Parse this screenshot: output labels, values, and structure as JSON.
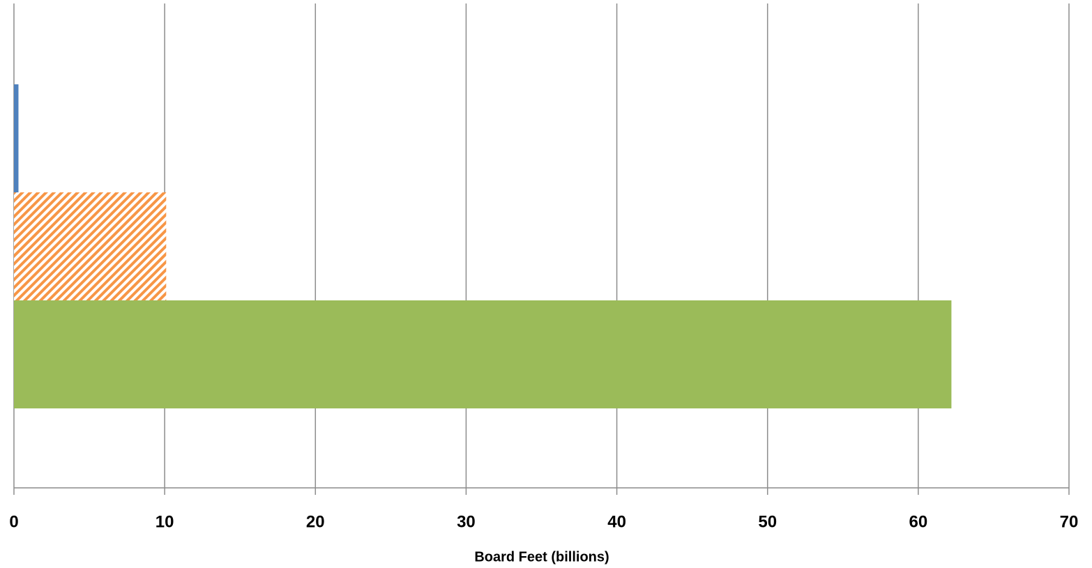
{
  "chart_data": {
    "type": "bar",
    "orientation": "horizontal",
    "categories": [
      null,
      null,
      null
    ],
    "values": [
      0.3,
      10.1,
      62.2
    ],
    "colors": [
      "#4f81bd",
      "#f79646",
      "#9bbb59"
    ],
    "hatch": [
      false,
      true,
      false
    ],
    "xlabel": "Board Feet (billions)",
    "xlim": [
      0,
      70
    ],
    "xticks": [
      0,
      10,
      20,
      30,
      40,
      50,
      60,
      70
    ],
    "grid": true
  }
}
